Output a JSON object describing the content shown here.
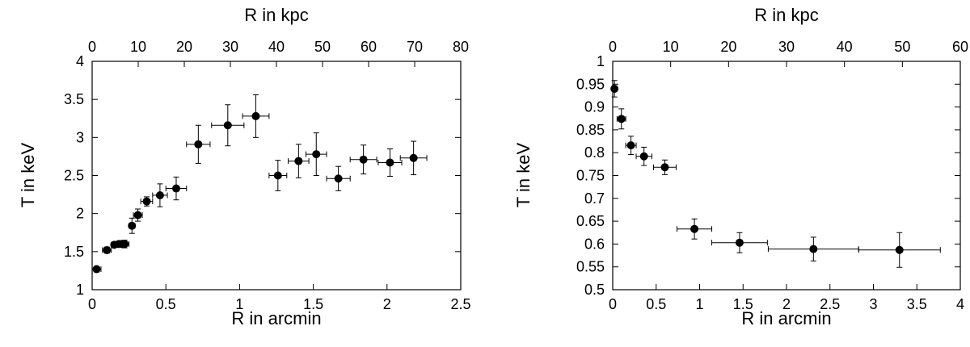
{
  "chart_data": [
    {
      "type": "scatter",
      "xlabel": "R in arcmin",
      "x2label": "R in kpc",
      "ylabel": "T in keV",
      "xlim": [
        0,
        2.5
      ],
      "x2lim": [
        0,
        80
      ],
      "ylim": [
        1,
        4
      ],
      "xticks": [
        "0",
        "0.5",
        "1",
        "1.5",
        "2",
        "2.5"
      ],
      "x2ticks": [
        "0",
        "10",
        "20",
        "30",
        "40",
        "50",
        "60",
        "70",
        "80"
      ],
      "yticks": [
        "1",
        "1.5",
        "2",
        "2.5",
        "3",
        "3.5",
        "4"
      ],
      "points": [
        {
          "x": 0.03,
          "xerr": 0.03,
          "y": 1.27,
          "yerr": 0.0
        },
        {
          "x": 0.1,
          "xerr": 0.03,
          "y": 1.52,
          "yerr": 0.04
        },
        {
          "x": 0.15,
          "xerr": 0.02,
          "y": 1.59,
          "yerr": 0.03
        },
        {
          "x": 0.18,
          "xerr": 0.02,
          "y": 1.6,
          "yerr": 0.03
        },
        {
          "x": 0.2,
          "xerr": 0.02,
          "y": 1.6,
          "yerr": 0.03
        },
        {
          "x": 0.22,
          "xerr": 0.03,
          "y": 1.6,
          "yerr": 0.05
        },
        {
          "x": 0.27,
          "xerr": 0.02,
          "y": 1.84,
          "yerr": 0.1
        },
        {
          "x": 0.31,
          "xerr": 0.03,
          "y": 1.98,
          "yerr": 0.08
        },
        {
          "x": 0.37,
          "xerr": 0.04,
          "y": 2.16,
          "yerr": 0.06
        },
        {
          "x": 0.46,
          "xerr": 0.05,
          "y": 2.24,
          "yerr": 0.15
        },
        {
          "x": 0.57,
          "xerr": 0.07,
          "y": 2.33,
          "yerr": 0.15
        },
        {
          "x": 0.72,
          "xerr": 0.08,
          "y": 2.91,
          "yerr": 0.25
        },
        {
          "x": 0.92,
          "xerr": 0.11,
          "y": 3.16,
          "yerr": 0.27
        },
        {
          "x": 1.11,
          "xerr": 0.09,
          "y": 3.28,
          "yerr": 0.28
        },
        {
          "x": 1.26,
          "xerr": 0.06,
          "y": 2.5,
          "yerr": 0.2
        },
        {
          "x": 1.4,
          "xerr": 0.07,
          "y": 2.69,
          "yerr": 0.22
        },
        {
          "x": 1.52,
          "xerr": 0.07,
          "y": 2.78,
          "yerr": 0.28
        },
        {
          "x": 1.67,
          "xerr": 0.08,
          "y": 2.46,
          "yerr": 0.16
        },
        {
          "x": 1.84,
          "xerr": 0.09,
          "y": 2.71,
          "yerr": 0.19
        },
        {
          "x": 2.02,
          "xerr": 0.08,
          "y": 2.67,
          "yerr": 0.18
        },
        {
          "x": 2.18,
          "xerr": 0.09,
          "y": 2.73,
          "yerr": 0.22
        }
      ]
    },
    {
      "type": "scatter",
      "xlabel": "R in arcmin",
      "x2label": "R in kpc",
      "ylabel": "T in keV",
      "xlim": [
        0,
        4
      ],
      "x2lim": [
        0,
        60
      ],
      "ylim": [
        0.5,
        1
      ],
      "xticks": [
        "0",
        "0.5",
        "1",
        "1.5",
        "2",
        "2.5",
        "3",
        "3.5",
        "4"
      ],
      "x2ticks": [
        "0",
        "10",
        "20",
        "30",
        "40",
        "50",
        "60"
      ],
      "yticks": [
        "0.5",
        "0.55",
        "0.6",
        "0.65",
        "0.7",
        "0.75",
        "0.8",
        "0.85",
        "0.9",
        "0.95",
        "1"
      ],
      "points": [
        {
          "x": 0.02,
          "xerr": 0.03,
          "y": 0.94,
          "yerr": 0.018
        },
        {
          "x": 0.1,
          "xerr": 0.05,
          "y": 0.874,
          "yerr": 0.022
        },
        {
          "x": 0.21,
          "xerr": 0.06,
          "y": 0.816,
          "yerr": 0.02
        },
        {
          "x": 0.36,
          "xerr": 0.09,
          "y": 0.792,
          "yerr": 0.02
        },
        {
          "x": 0.6,
          "xerr": 0.13,
          "y": 0.768,
          "yerr": 0.016
        },
        {
          "x": 0.94,
          "xerr": 0.2,
          "y": 0.633,
          "yerr": 0.022
        },
        {
          "x": 1.46,
          "xerr": 0.32,
          "y": 0.603,
          "yerr": 0.022
        },
        {
          "x": 2.31,
          "xerr": 0.52,
          "y": 0.589,
          "yerr": 0.026
        },
        {
          "x": 3.3,
          "xerr": 0.47,
          "y": 0.587,
          "yerr": 0.038
        }
      ]
    }
  ]
}
